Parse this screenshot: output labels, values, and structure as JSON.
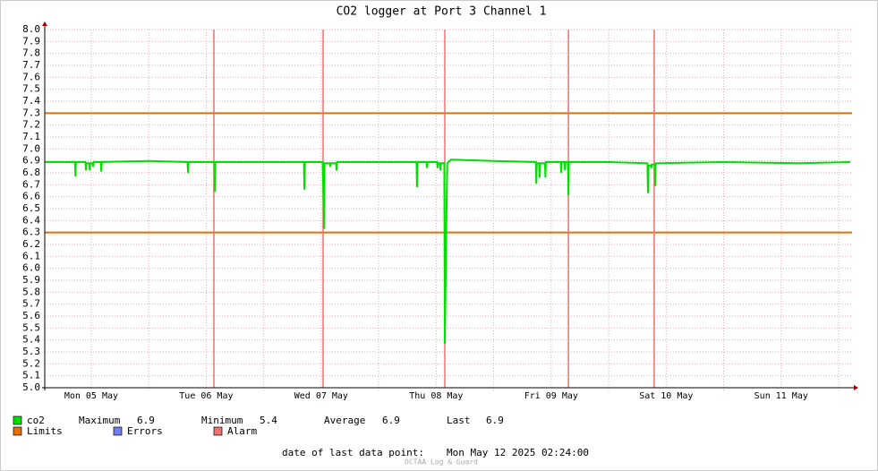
{
  "chart_data": {
    "type": "line",
    "title": "CO2 logger at Port 3 Channel 1",
    "x": [
      2.4,
      8.6,
      8.7,
      8.8,
      10.8,
      10.9,
      11.0,
      11.6,
      11.7,
      11.8,
      12.3,
      12.4,
      12.5,
      14.0,
      14.1,
      14.2,
      24,
      32.1,
      32.2,
      32.3,
      37.7,
      37.8,
      37.9,
      48,
      56.4,
      56.5,
      56.6,
      60.3,
      60.4,
      60.6,
      60.7,
      61.8,
      61.9,
      62.0,
      63.1,
      63.2,
      63.3,
      72,
      79.9,
      80.0,
      80.1,
      82.0,
      82.1,
      82.2,
      84.2,
      84.3,
      84.4,
      84.8,
      84.9,
      85.0,
      85.7,
      85.8,
      86.2,
      86.3,
      87.1,
      96,
      104.8,
      104.9,
      105.0,
      105.5,
      105.6,
      105.7,
      106.7,
      106.8,
      106.9,
      110.0,
      110.1,
      110.2,
      110.8,
      110.9,
      111.0,
      111.5,
      111.6,
      111.7,
      120,
      128.1,
      128.2,
      128.3,
      128.8,
      128.9,
      129.0,
      129.6,
      129.7,
      129.8,
      144,
      160,
      170.4
    ],
    "series": [
      {
        "name": "co2",
        "color": "#00e000",
        "values": [
          6.89,
          6.89,
          6.77,
          6.89,
          6.89,
          6.82,
          6.88,
          6.88,
          6.82,
          6.88,
          6.88,
          6.85,
          6.89,
          6.89,
          6.81,
          6.89,
          6.9,
          6.89,
          6.8,
          6.89,
          6.89,
          6.64,
          6.89,
          6.89,
          6.89,
          6.66,
          6.89,
          6.89,
          6.74,
          6.33,
          6.88,
          6.88,
          6.85,
          6.88,
          6.88,
          6.82,
          6.89,
          6.89,
          6.89,
          6.68,
          6.89,
          6.89,
          6.84,
          6.89,
          6.89,
          6.84,
          6.88,
          6.88,
          6.82,
          6.88,
          6.88,
          5.37,
          6.59,
          6.88,
          6.91,
          6.9,
          6.89,
          6.71,
          6.88,
          6.88,
          6.76,
          6.88,
          6.88,
          6.76,
          6.89,
          6.89,
          6.8,
          6.89,
          6.89,
          6.82,
          6.89,
          6.89,
          6.61,
          6.89,
          6.89,
          6.88,
          6.63,
          6.86,
          6.86,
          6.84,
          6.87,
          6.87,
          6.69,
          6.88,
          6.89,
          6.88,
          6.89
        ]
      }
    ],
    "xlim": [
      2.3,
      170.8
    ],
    "xticks": [
      {
        "value": 12,
        "label": "Mon 05 May"
      },
      {
        "value": 36,
        "label": "Tue 06 May"
      },
      {
        "value": 60,
        "label": "Wed 07 May"
      },
      {
        "value": 84,
        "label": "Thu 08 May"
      },
      {
        "value": 108,
        "label": "Fri 09 May"
      },
      {
        "value": 132,
        "label": "Sat 10 May"
      },
      {
        "value": 156,
        "label": "Sun 11 May"
      }
    ],
    "xgrid": [
      24,
      48,
      72,
      96,
      120,
      144,
      168
    ],
    "ylim": [
      5.0,
      8.0
    ],
    "yticks": [
      {
        "value": 5.0,
        "label": "5.0"
      },
      5.1,
      5.2,
      5.3,
      5.4,
      5.5,
      5.6,
      5.7,
      5.8,
      5.9,
      {
        "value": 6.0,
        "label": "6.0"
      },
      6.1,
      6.2,
      6.3,
      6.4,
      6.5,
      6.6,
      6.7,
      6.8,
      6.9,
      {
        "value": 7.0,
        "label": "7.0"
      },
      7.1,
      7.2,
      7.3,
      7.4,
      7.5,
      7.6,
      7.7,
      7.8,
      7.9,
      {
        "value": 8.0,
        "label": "8.0"
      }
    ],
    "grid": true,
    "limits": {
      "name": "Limits",
      "color": "#e87000",
      "values": [
        6.3,
        7.3
      ]
    },
    "errors": {
      "name": "Errors",
      "color": "#7080f0"
    },
    "alarms": {
      "name": "Alarm",
      "color": "#f07070",
      "x": [
        37.6,
        60.4,
        85.8,
        111.6,
        129.5
      ]
    },
    "stats": [
      {
        "label": "Maximum",
        "value": 6.9
      },
      {
        "label": "Minimum",
        "value": 5.4
      },
      {
        "label": "Average",
        "value": 6.9
      },
      {
        "label": "Last",
        "value": 6.9
      }
    ],
    "footer_label": "date of last data point:",
    "footer_value": "Mon May 12 2025 02:24:00",
    "watermark": "OCTAA Log & Guard"
  }
}
